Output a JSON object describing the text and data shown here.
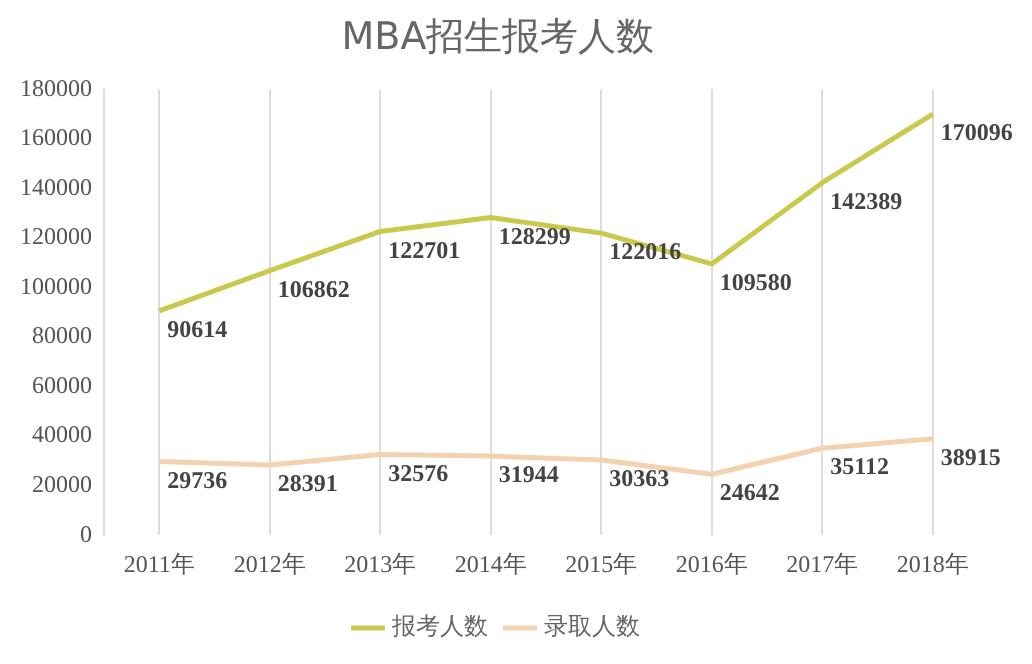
{
  "chart_data": {
    "type": "line",
    "title": "MBA招生报考人数",
    "categories": [
      "2011年",
      "2012年",
      "2013年",
      "2014年",
      "2015年",
      "2016年",
      "2017年",
      "2018年"
    ],
    "series": [
      {
        "name": "报考人数",
        "color": "#c9c94e",
        "values": [
          90614,
          106862,
          122701,
          128299,
          122016,
          109580,
          142389,
          170096
        ]
      },
      {
        "name": "录取人数",
        "color": "#f3d2b0",
        "values": [
          29736,
          28391,
          32576,
          31944,
          30363,
          24642,
          35112,
          38915
        ]
      }
    ],
    "ylim": [
      0,
      180000
    ],
    "yticks": [
      0,
      20000,
      40000,
      60000,
      80000,
      100000,
      120000,
      140000,
      160000,
      180000
    ],
    "grid": "x",
    "legend": "bottom",
    "data_labels": true,
    "marker": "none",
    "line_style": "solid"
  }
}
